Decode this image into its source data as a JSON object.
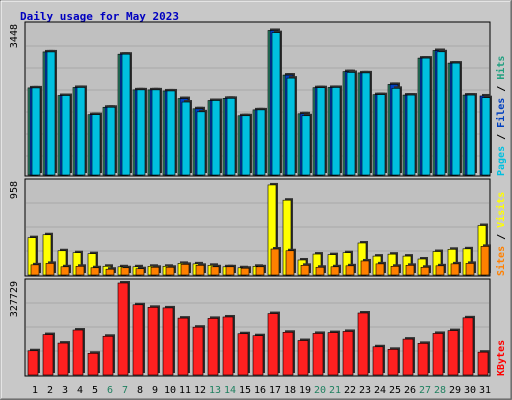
{
  "chart_data": {
    "type": "bar",
    "title": "Daily usage for May 2023",
    "days": [
      "1",
      "2",
      "3",
      "4",
      "5",
      "6",
      "7",
      "8",
      "9",
      "10",
      "11",
      "12",
      "13",
      "14",
      "15",
      "16",
      "17",
      "18",
      "19",
      "20",
      "21",
      "22",
      "23",
      "24",
      "25",
      "26",
      "27",
      "28",
      "29",
      "30",
      "31"
    ],
    "weekend_days": [
      "6",
      "7",
      "13",
      "14",
      "20",
      "21",
      "27",
      "28"
    ],
    "panels": [
      {
        "id": "top",
        "max_label": "3448",
        "ymax": 3448,
        "legend": [
          {
            "text": "Pages",
            "color": "#00c0e0"
          },
          {
            "text": "Files",
            "color": "#0040c0"
          },
          {
            "text": "Hits",
            "color": "#20a080"
          }
        ],
        "series": [
          {
            "name": "Hits",
            "color": "#2f8f6f",
            "values": [
              2025,
              2852,
              1850,
              2035,
              1410,
              1580,
              2800,
              1980,
              1980,
              1955,
              1780,
              1545,
              1735,
              1785,
              1385,
              1520,
              3345,
              2320,
              1430,
              2030,
              2035,
              2400,
              2370,
              1870,
              2105,
              1860,
              2710,
              2885,
              2595,
              1860,
              0
            ]
          },
          {
            "name": "Files",
            "color": "#0040c0",
            "values": [
              2025,
              2852,
              1850,
              2035,
              1410,
              1580,
              2800,
              1980,
              1980,
              1955,
              1780,
              1545,
              1735,
              1785,
              1385,
              1520,
              3345,
              2320,
              1430,
              2030,
              2035,
              2400,
              2370,
              1870,
              2105,
              1860,
              2710,
              2885,
              2595,
              1860,
              1840
            ]
          },
          {
            "name": "Pages",
            "color": "#00c0e0",
            "values": [
              2025,
              2852,
              1850,
              2035,
              1410,
              1580,
              2800,
              1980,
              1980,
              1955,
              1700,
              1475,
              1735,
              1785,
              1385,
              1520,
              3295,
              2250,
              1385,
              2030,
              2035,
              2380,
              2370,
              1870,
              2015,
              1860,
              2710,
              2855,
              2595,
              1860,
              1800
            ]
          }
        ]
      },
      {
        "id": "mid",
        "max_label": "958",
        "ymax": 958,
        "legend": [
          {
            "text": "Sites",
            "color": "#ff8000"
          },
          {
            "text": "Visits",
            "color": "#ffff00"
          }
        ],
        "series": [
          {
            "name": "Visits",
            "color": "#ffff00",
            "values": [
              395,
              425,
              260,
              240,
              230,
              100,
              95,
              95,
              100,
              100,
              130,
              125,
              110,
              95,
              85,
              100,
              938,
              781,
              165,
              226,
              220,
              240,
              340,
              205,
              225,
              205,
              175,
              252,
              275,
              280,
              520
            ]
          },
          {
            "name": "Sites",
            "color": "#ff8000",
            "values": [
              115,
              130,
              95,
              100,
              85,
              70,
              85,
              75,
              90,
              90,
              120,
              110,
              95,
              95,
              80,
              95,
              278,
              260,
              110,
              90,
              95,
              105,
              155,
              125,
              100,
              110,
              90,
              105,
              125,
              130,
              305
            ]
          }
        ]
      },
      {
        "id": "bot",
        "max_label": "327729",
        "ymax": 327729,
        "legend": [
          {
            "text": "KBytes",
            "color": "#ff0000"
          }
        ],
        "series": [
          {
            "name": "KBytes",
            "color": "#ff2020",
            "values": [
              89000,
              146000,
              116000,
              162000,
              80000,
              140000,
              327729,
              251000,
              242000,
              240000,
              204000,
              172000,
              203000,
              208000,
              149000,
              142000,
              220000,
              154000,
              125000,
              150000,
              153000,
              157000,
              222000,
              103000,
              94000,
              130000,
              115000,
              150000,
              160000,
              205000,
              84000
            ]
          }
        ]
      }
    ]
  }
}
